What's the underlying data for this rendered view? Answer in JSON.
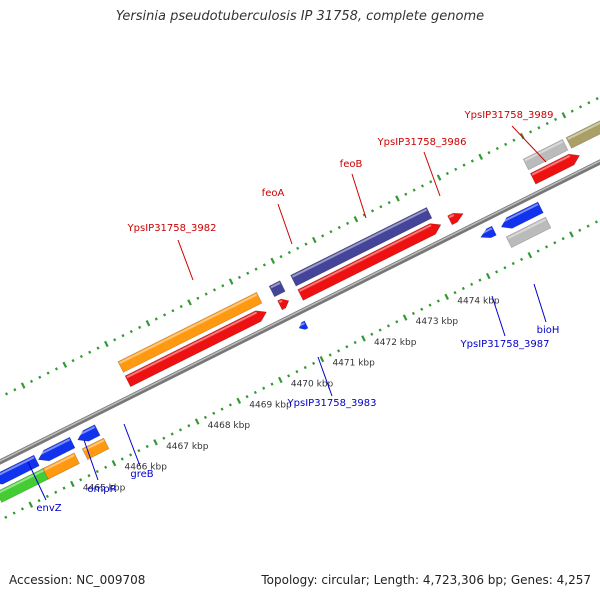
{
  "title": "Yersinia pseudotuberculosis IP 31758, complete genome",
  "footer": {
    "accession": "Accession: NC_009708",
    "summary": "Topology: circular; Length: 4,723,306 bp; Genes: 4,257"
  },
  "colors": {
    "backbone": "#888888",
    "tick_major": "#339933",
    "tick_minor": "#339933",
    "forward_label": "#cc0000",
    "reverse_label": "#0000cc",
    "scale_label": "#333333",
    "red": "#ee1111",
    "blue": "#1133ee",
    "orange": "#ff9911",
    "green": "#44cc33",
    "purple": "#444499",
    "grey": "#bbbbbb",
    "olive": "#aaa066"
  },
  "scale": {
    "unit": "kbp",
    "labels": [
      "4465 kbp",
      "4466 kbp",
      "4467 kbp",
      "4468 kbp",
      "4469 kbp",
      "4470 kbp",
      "4471 kbp",
      "4472 kbp",
      "4473 kbp",
      "4474 kbp"
    ]
  },
  "genes_forward": [
    {
      "name": "YpsIP31758_3982",
      "label_color": "#cc0000"
    },
    {
      "name": "feoA",
      "label_color": "#cc0000"
    },
    {
      "name": "feoB",
      "label_color": "#cc0000"
    },
    {
      "name": "YpsIP31758_3986",
      "label_color": "#cc0000"
    },
    {
      "name": "YpsIP31758_3989",
      "label_color": "#cc0000"
    }
  ],
  "genes_reverse": [
    {
      "name": "envZ",
      "label_color": "#0000cc"
    },
    {
      "name": "ompR",
      "label_color": "#0000cc"
    },
    {
      "name": "greB",
      "label_color": "#0000cc"
    },
    {
      "name": "YpsIP31758_3983",
      "label_color": "#0000cc"
    },
    {
      "name": "YpsIP31758_3987",
      "label_color": "#0000cc"
    },
    {
      "name": "bioH",
      "label_color": "#0000cc"
    }
  ]
}
